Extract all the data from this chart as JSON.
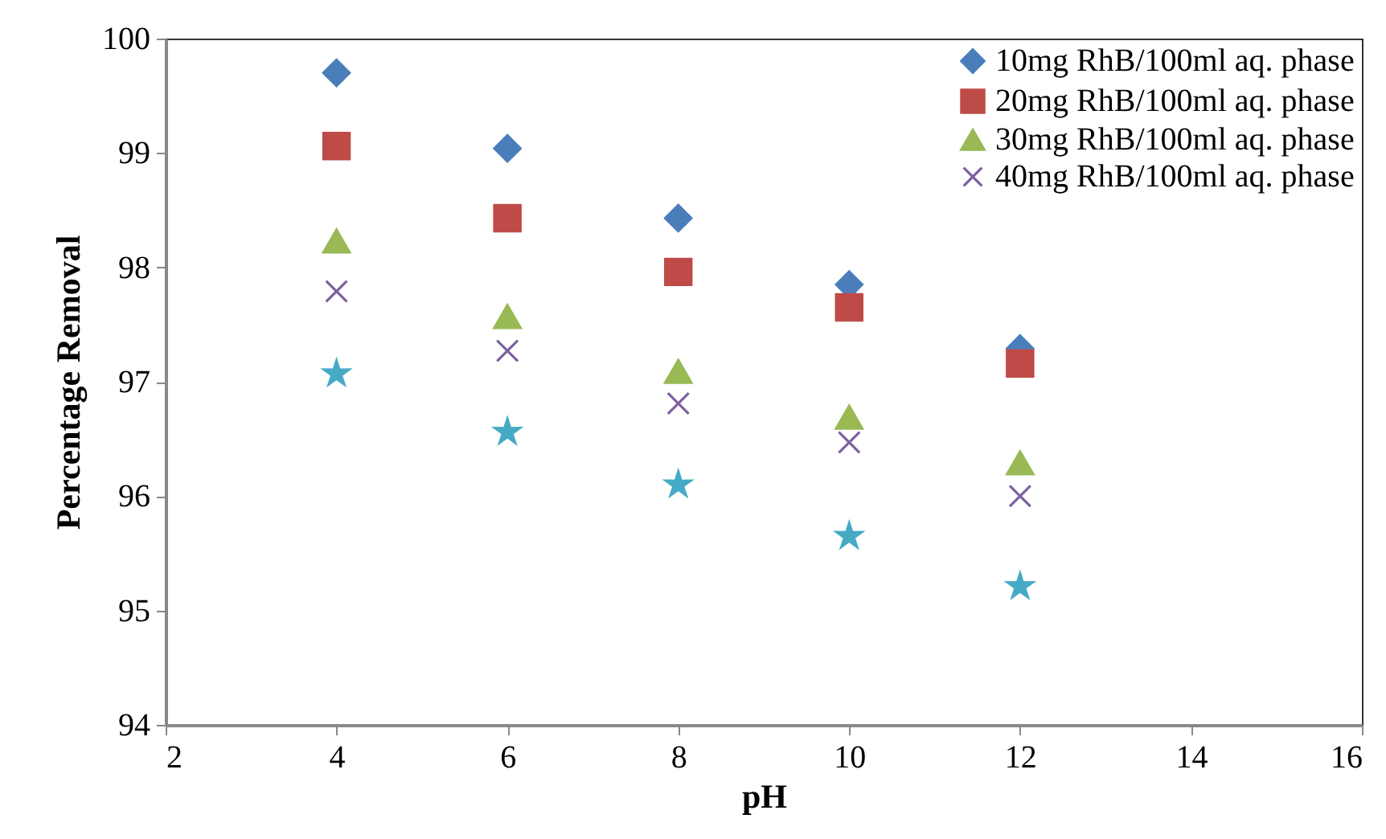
{
  "chart_data": {
    "type": "scatter",
    "xlabel": "pH",
    "ylabel": "Percentage Removal",
    "x": [
      4,
      6,
      8,
      10,
      12
    ],
    "xlim": [
      2,
      16
    ],
    "xticks": [
      2,
      4,
      6,
      8,
      10,
      12,
      14,
      16
    ],
    "ylim": [
      94,
      100
    ],
    "yticks": [
      94,
      95,
      96,
      97,
      98,
      99,
      100
    ],
    "grid": false,
    "legend": "top right",
    "series": [
      {
        "name": "10mg RhB/100ml aq. phase",
        "color": "#4a7ebb",
        "marker": "diamond",
        "values": [
          99.7,
          99.04,
          98.43,
          97.85,
          97.29
        ]
      },
      {
        "name": "20mg RhB/100ml aq. phase",
        "color": "#be4b48",
        "marker": "square",
        "values": [
          99.06,
          98.43,
          97.96,
          97.65,
          97.16
        ]
      },
      {
        "name": "30mg RhB/100ml aq. phase",
        "color": "#98b954",
        "marker": "triangle",
        "values": [
          98.23,
          97.57,
          97.09,
          96.69,
          96.29
        ]
      },
      {
        "name": "40mg RhB/100ml aq. phase",
        "color": "#7d60a0",
        "marker": "cross",
        "values": [
          97.79,
          97.27,
          96.81,
          96.47,
          96.0
        ]
      },
      {
        "color": "#46aac5",
        "marker": "star",
        "values": [
          97.07,
          96.56,
          96.1,
          95.65,
          95.21
        ]
      }
    ]
  }
}
